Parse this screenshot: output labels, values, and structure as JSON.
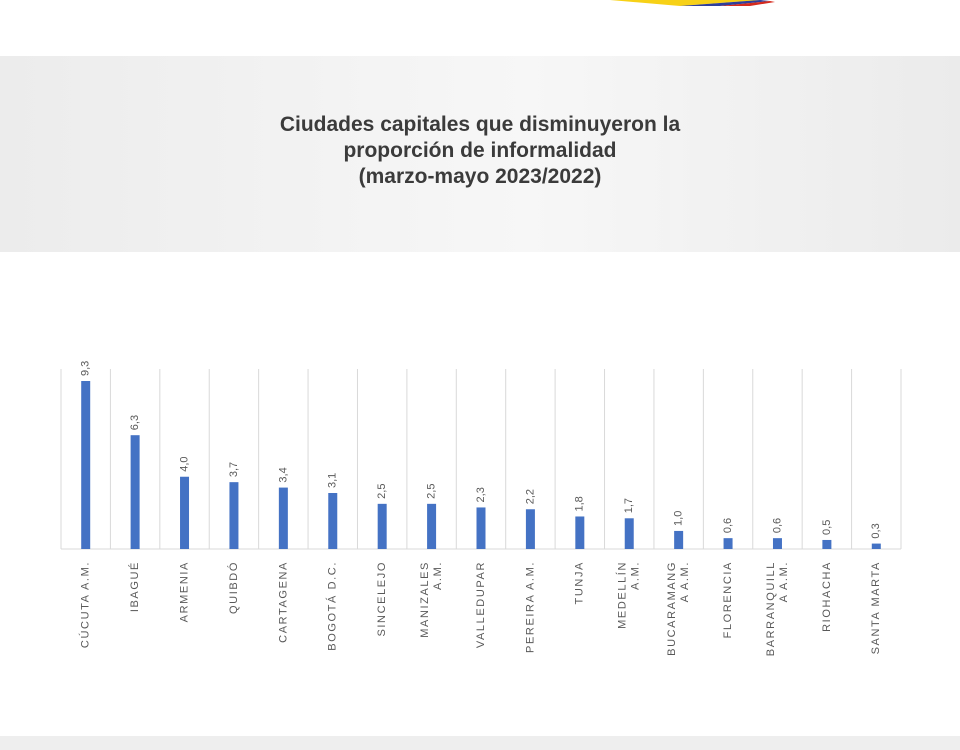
{
  "header": {
    "title_lines": [
      "Ciudades capitales que disminuyeron la",
      "proporción de informalidad",
      "(marzo-mayo 2023/2022)"
    ]
  },
  "colors": {
    "bar": "#4472c4",
    "title": "#3b3b3b",
    "band": "#efefef",
    "grid": "#d9d9d9"
  },
  "chart_data": {
    "type": "bar",
    "title": "Ciudades capitales que disminuyeron la proporción de informalidad (marzo-mayo 2023/2022)",
    "categories": [
      [
        "CÚCUTA A.M."
      ],
      [
        "IBAGUÉ"
      ],
      [
        "ARMENIA"
      ],
      [
        "QUIBDÓ"
      ],
      [
        "CARTAGENA"
      ],
      [
        "BOGOTÁ D.C."
      ],
      [
        "SINCELEJO"
      ],
      [
        "MANIZALES",
        "A.M."
      ],
      [
        "VALLEDUPAR"
      ],
      [
        "PEREIRA A.M."
      ],
      [
        "TUNJA"
      ],
      [
        "MEDELLÍN",
        "A.M."
      ],
      [
        "BUCARAMANG",
        "A A.M."
      ],
      [
        "FLORENCIA"
      ],
      [
        "BARRANQUILL",
        "A A.M."
      ],
      [
        "RIOHACHA"
      ],
      [
        "SANTA MARTA"
      ]
    ],
    "values": [
      9.3,
      6.3,
      4.0,
      3.7,
      3.4,
      3.1,
      2.5,
      2.5,
      2.3,
      2.2,
      1.8,
      1.7,
      1.0,
      0.6,
      0.6,
      0.5,
      0.3
    ],
    "value_labels": [
      "9,3",
      "6,3",
      "4,0",
      "3,7",
      "3,4",
      "3,1",
      "2,5",
      "2,5",
      "2,3",
      "2,2",
      "1,8",
      "1,7",
      "1,0",
      "0,6",
      "0,6",
      "0,5",
      "0,3"
    ],
    "ylim": [
      0,
      9.3
    ],
    "xlabel": "",
    "ylabel": "",
    "grid": "vertical",
    "legend": "none"
  }
}
